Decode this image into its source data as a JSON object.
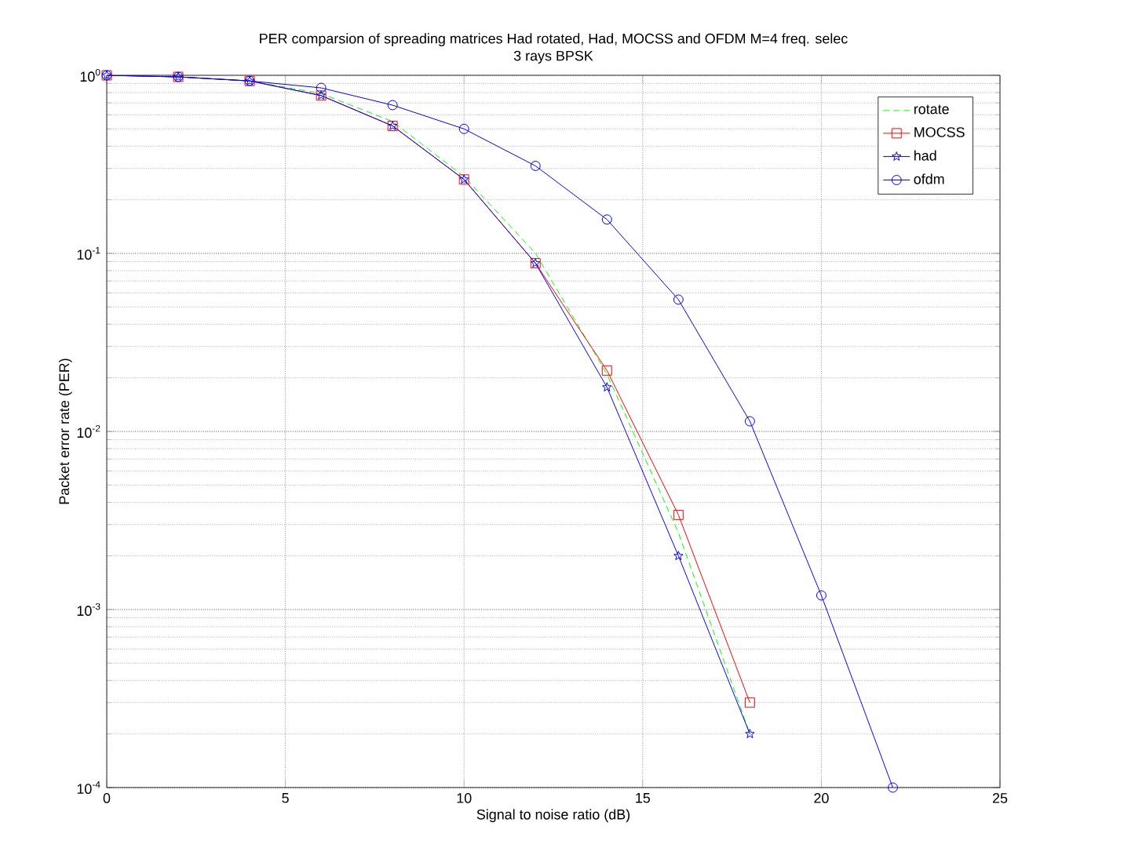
{
  "chart_data": {
    "type": "line",
    "title": "PER comparsion of spreading matrices Had rotated, Had, MOCSS and OFDM M=4 freq. selec",
    "subtitle": "3 rays BPSK",
    "xlabel": "Signal to noise ratio (dB)",
    "ylabel": "Packet error rate (PER)",
    "x": [
      0,
      2,
      4,
      6,
      8,
      10,
      12,
      14,
      16,
      18,
      20,
      22
    ],
    "series": [
      {
        "name": "rotate",
        "color": "#00ff00",
        "line_style": "dashed",
        "marker": "none",
        "values": [
          1,
          0.98,
          0.93,
          0.79,
          0.55,
          0.27,
          0.1,
          0.021,
          0.0027,
          0.0002,
          null,
          null
        ]
      },
      {
        "name": "MOCSS",
        "color": "#ff0000",
        "line_style": "solid",
        "marker": "square",
        "values": [
          1,
          0.98,
          0.93,
          0.77,
          0.52,
          0.26,
          0.088,
          0.022,
          0.0034,
          0.0003,
          null,
          null
        ]
      },
      {
        "name": "had",
        "color": "#0000ff",
        "line_style": "solid",
        "marker": "star",
        "values": [
          1,
          0.98,
          0.93,
          0.77,
          0.52,
          0.26,
          0.088,
          0.0177,
          0.002,
          0.0002,
          null,
          null
        ]
      },
      {
        "name": "ofdm",
        "color": "#0000ff",
        "line_style": "solid",
        "marker": "circle",
        "values": [
          1,
          0.98,
          0.93,
          0.85,
          0.68,
          0.5,
          0.31,
          0.155,
          0.055,
          0.0114,
          0.0012,
          0.0001
        ]
      }
    ],
    "xlim": [
      0,
      25
    ],
    "xticks": [
      0,
      5,
      10,
      15,
      20,
      25
    ],
    "ylim": [
      0.0001,
      1
    ],
    "yticks": [
      {
        "value": 0.0001,
        "label": "10$^{-4}$"
      },
      {
        "value": 0.001,
        "label": "10$^{-3}$"
      },
      {
        "value": 0.01,
        "label": "10$^{-2}$"
      },
      {
        "value": 0.1,
        "label": "10$^{-1}$"
      },
      {
        "value": 1,
        "label": "10$^{0}$"
      }
    ],
    "log": "y",
    "grid": true,
    "legend": "top right"
  }
}
